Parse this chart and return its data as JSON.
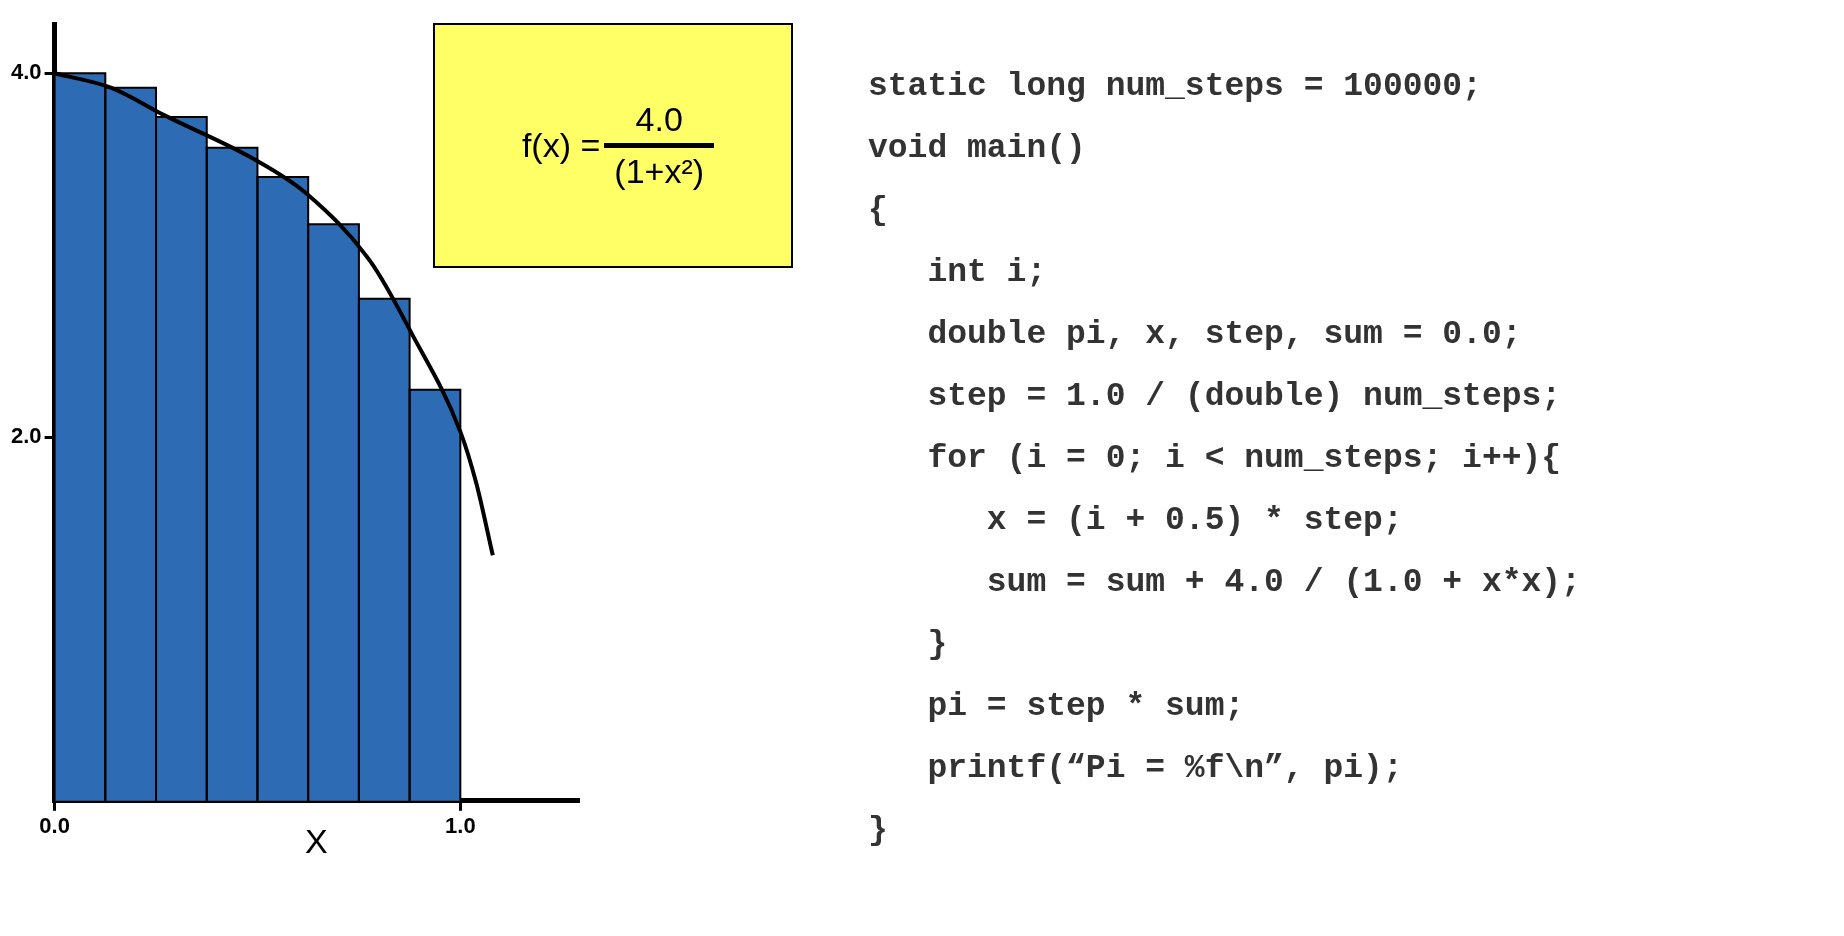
{
  "chart_data": [
    {
      "type": "histogram",
      "xlabel": "X",
      "bins": [
        0,
        0.125,
        0.25,
        0.375,
        0.5,
        0.625,
        0.75,
        0.875,
        1.0
      ],
      "series": [
        {
          "type": "histogram",
          "color": "#2e6bb5",
          "values": [
            4.0,
            3.92,
            3.76,
            3.59,
            3.43,
            3.17,
            2.76,
            2.26
          ]
        },
        {
          "type": "line",
          "color": "#000000",
          "x": [
            0,
            0.14,
            0.27,
            0.49,
            0.62,
            0.78,
            0.88,
            1.0,
            1.04,
            1.08
          ],
          "values": [
            4.0,
            3.92,
            3.77,
            3.53,
            3.34,
            2.96,
            2.57,
            2.03,
            1.74,
            1.35
          ]
        }
      ],
      "xlim": [
        0,
        1.29
      ],
      "ylim": [
        0,
        4.27
      ],
      "xticks": [
        {
          "value": 0,
          "label": "0.0"
        },
        {
          "value": 1,
          "label": "1.0"
        }
      ],
      "yticks": [
        {
          "value": 2,
          "label": "2.0"
        },
        {
          "value": 4,
          "label": "4.0"
        }
      ],
      "grid": false,
      "legend": false,
      "annotations": [
        "f(x) =",
        "4.0",
        "(1+x²)"
      ]
    },
    {
      "type": "other",
      "annotations": [
        "static long num_steps = 100000;",
        "void main()",
        "{",
        "   int i;",
        "   double pi, x, step, sum = 0.0;",
        "   step = 1.0 / (double) num_steps;",
        "   for (i = 0; i < num_steps; i++){",
        "      x = (i + 0.5) * step;",
        "      sum = sum + 4.0 / (1.0 + x*x);",
        "   }",
        "   pi = step * sum;",
        "   printf(“Pi = %f\\n”, pi);",
        "}"
      ]
    }
  ]
}
